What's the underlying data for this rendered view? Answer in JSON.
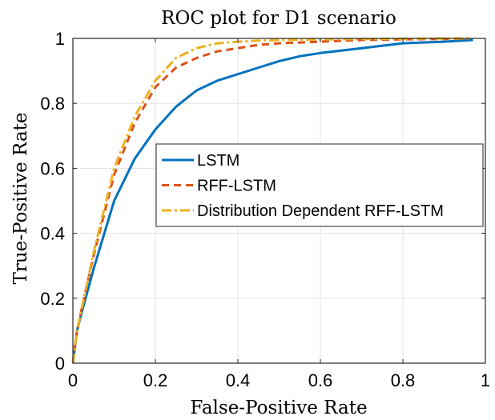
{
  "chart_data": {
    "type": "line",
    "title": "ROC plot for D1 scenario",
    "xlabel": "False-Positive Rate",
    "ylabel": "True-Positive Rate",
    "xlim": [
      0,
      1
    ],
    "ylim": [
      0,
      1
    ],
    "xticks": [
      "0",
      "0.2",
      "0.4",
      "0.6",
      "0.8",
      "1"
    ],
    "yticks": [
      "0",
      "0.2",
      "0.4",
      "0.6",
      "0.8",
      "1"
    ],
    "grid": true,
    "legend_position": "center-right",
    "series": [
      {
        "name": "LSTM",
        "color": "#0072BD",
        "style": "solid",
        "x": [
          0,
          0.01,
          0.02,
          0.05,
          0.1,
          0.15,
          0.2,
          0.25,
          0.3,
          0.35,
          0.4,
          0.45,
          0.5,
          0.55,
          0.6,
          0.7,
          0.8,
          0.9,
          0.97
        ],
        "y": [
          0,
          0.1,
          0.15,
          0.29,
          0.5,
          0.63,
          0.72,
          0.79,
          0.84,
          0.87,
          0.89,
          0.91,
          0.93,
          0.945,
          0.955,
          0.97,
          0.985,
          0.99,
          0.995
        ]
      },
      {
        "name": "RFF-LSTM",
        "color": "#D95319",
        "style": "dashed",
        "x": [
          0,
          0.01,
          0.02,
          0.05,
          0.1,
          0.15,
          0.2,
          0.25,
          0.3,
          0.35,
          0.4,
          0.45,
          0.5,
          0.6,
          0.7,
          0.8,
          0.9,
          0.96
        ],
        "y": [
          0,
          0.1,
          0.16,
          0.33,
          0.58,
          0.74,
          0.85,
          0.91,
          0.94,
          0.96,
          0.97,
          0.98,
          0.985,
          0.99,
          0.995,
          0.997,
          0.998,
          1.0
        ]
      },
      {
        "name": "Distribution Dependent RFF-LSTM",
        "color": "#EDB120",
        "style": "dashdot",
        "x": [
          0,
          0.01,
          0.02,
          0.05,
          0.1,
          0.15,
          0.2,
          0.25,
          0.3,
          0.35,
          0.4,
          0.45,
          0.5,
          0.6,
          0.7,
          0.8,
          0.9,
          0.96
        ],
        "y": [
          0,
          0.1,
          0.16,
          0.34,
          0.6,
          0.76,
          0.87,
          0.94,
          0.97,
          0.985,
          0.99,
          0.993,
          0.995,
          0.997,
          0.998,
          0.999,
          1.0,
          1.0
        ]
      }
    ]
  }
}
